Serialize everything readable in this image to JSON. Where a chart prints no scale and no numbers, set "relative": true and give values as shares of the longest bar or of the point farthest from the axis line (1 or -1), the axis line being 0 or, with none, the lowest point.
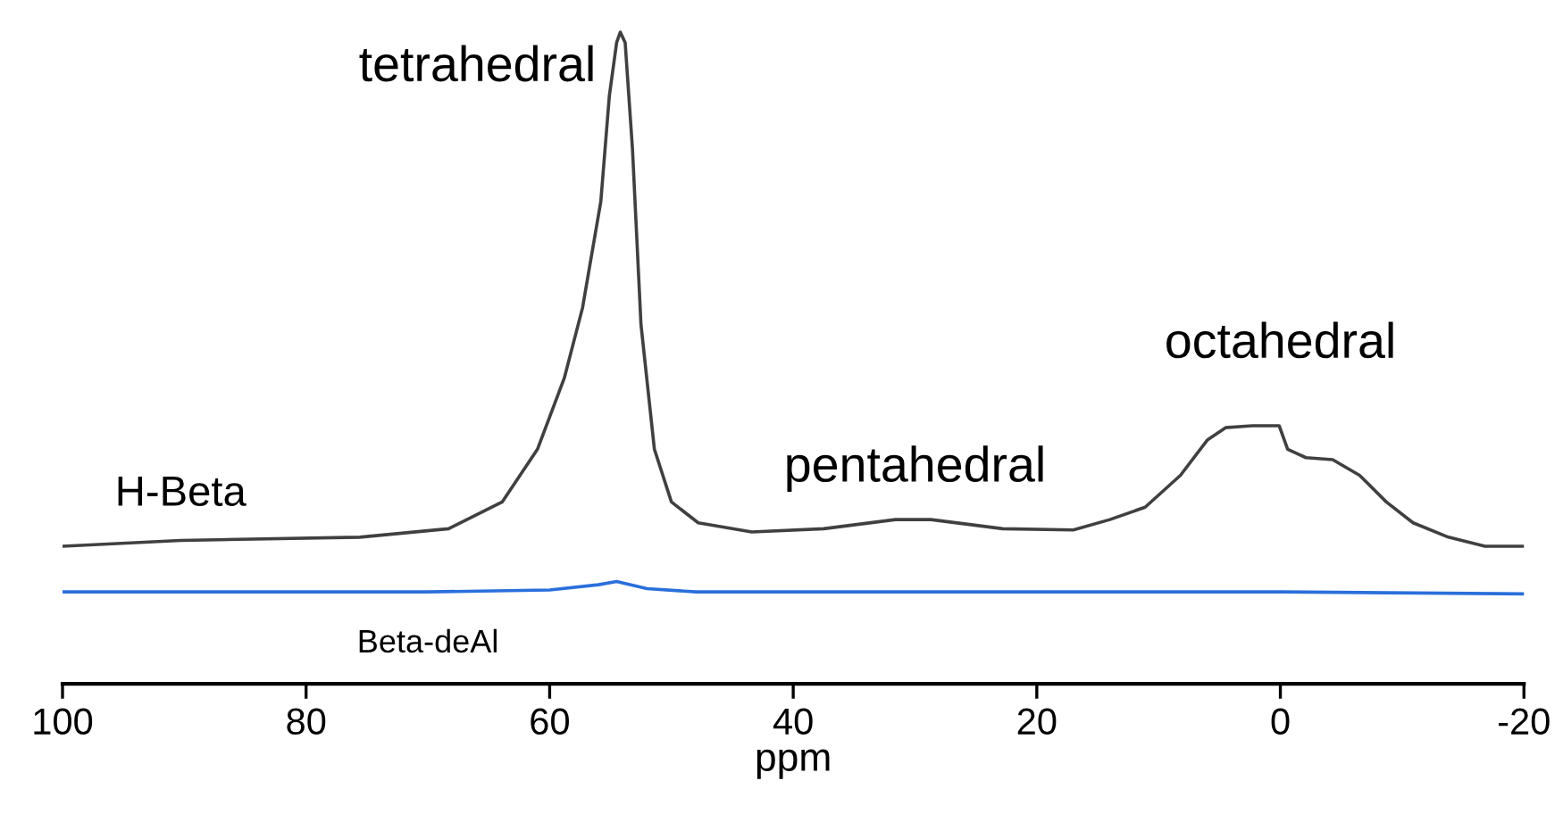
{
  "chart_data": {
    "type": "line",
    "relative": true,
    "xlabel": "ppm",
    "xlim": [
      100,
      -20
    ],
    "xticks": [
      100,
      80,
      60,
      40,
      20,
      0,
      {
        "value": -20,
        "label": "-20"
      }
    ],
    "tick_labels": "x",
    "grid": false,
    "legend": false,
    "series": [
      {
        "name": "H-Beta",
        "color": "#404040",
        "x": [
          100,
          90.3,
          75.6,
          68.3,
          63.9,
          61.0,
          58.8,
          57.3,
          55.8,
          55.1,
          54.5,
          54.2,
          53.8,
          53.2,
          52.5,
          51.4,
          50.0,
          47.8,
          43.4,
          37.5,
          31.6,
          28.7,
          22.8,
          17.0,
          14.0,
          11.1,
          8.2,
          6.0,
          4.5,
          2.3,
          0.1,
          -0.6,
          -2.1,
          -4.3,
          -6.5,
          -8.7,
          -10.9,
          -13.8,
          -16.8,
          -20
        ],
        "values": [
          0.211,
          0.22,
          0.225,
          0.238,
          0.279,
          0.36,
          0.469,
          0.577,
          0.74,
          0.902,
          0.984,
          1.0,
          0.984,
          0.821,
          0.551,
          0.36,
          0.279,
          0.247,
          0.233,
          0.238,
          0.252,
          0.252,
          0.238,
          0.236,
          0.252,
          0.271,
          0.32,
          0.374,
          0.393,
          0.396,
          0.396,
          0.36,
          0.347,
          0.344,
          0.32,
          0.279,
          0.247,
          0.225,
          0.211,
          0.211
        ]
      },
      {
        "name": "Beta-deAl",
        "color": "#2a6fdb",
        "x": [
          100,
          70,
          60,
          56,
          54.5,
          52,
          48,
          20,
          0,
          -20
        ],
        "values": [
          0.141,
          0.141,
          0.144,
          0.152,
          0.157,
          0.146,
          0.141,
          0.141,
          0.141,
          0.138
        ]
      }
    ],
    "annotations": [
      {
        "text": "tetrahedral",
        "x": 54.2,
        "y": 1.0
      },
      {
        "text": "pentahedral",
        "x": 30,
        "y": 0.25
      },
      {
        "text": "octahedral",
        "x": 0,
        "y": 0.4
      }
    ]
  }
}
